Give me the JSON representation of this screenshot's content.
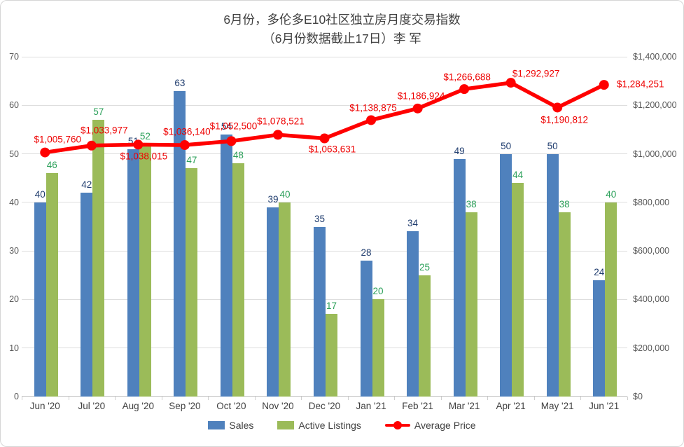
{
  "title": {
    "line1": "6月份，多伦多E10社区独立房月度交易指数",
    "line2": "（6月份数据截止17日）李 军"
  },
  "chart_data": {
    "type": "combo_bar_line",
    "categories": [
      "Jun '20",
      "Jul '20",
      "Aug '20",
      "Sep '20",
      "Oct '20",
      "Nov '20",
      "Dec '20",
      "Jan '21",
      "Feb '21",
      "Mar '21",
      "Apr '21",
      "May '21",
      "Jun '21"
    ],
    "series": [
      {
        "name": "Sales",
        "type": "bar",
        "color": "#4f81bd",
        "axis": "left",
        "values": [
          40,
          42,
          51,
          63,
          54,
          39,
          35,
          28,
          34,
          49,
          50,
          50,
          24
        ]
      },
      {
        "name": "Active Listings",
        "type": "bar",
        "color": "#9bbb59",
        "axis": "left",
        "values": [
          46,
          57,
          52,
          47,
          48,
          40,
          17,
          20,
          25,
          38,
          44,
          38,
          40
        ]
      },
      {
        "name": "Average Price",
        "type": "line",
        "color": "#ff0000",
        "axis": "right",
        "values": [
          1005760,
          1033977,
          1038015,
          1036140,
          1052500,
          1078521,
          1063631,
          1138875,
          1186924,
          1266688,
          1292927,
          1190812,
          1284251
        ],
        "labels": [
          "$1,005,760",
          "$1,033,977",
          "$1,038,015",
          "$1,036,140",
          "$1,052,500",
          "$1,078,521",
          "$1,063,631",
          "$1,138,875",
          "$1,186,924",
          "$1,266,688",
          "$1,292,927",
          "$1,190,812",
          "$1,284,251"
        ],
        "label_offsets": [
          [
            18,
            -19
          ],
          [
            18,
            -22
          ],
          [
            8,
            17
          ],
          [
            3,
            -19
          ],
          [
            3,
            -21
          ],
          [
            4,
            -19
          ],
          [
            11,
            15
          ],
          [
            3,
            -17
          ],
          [
            5,
            -18
          ],
          [
            4,
            -17
          ],
          [
            36,
            -13
          ],
          [
            10,
            18
          ],
          [
            52,
            -1
          ]
        ]
      }
    ],
    "left_axis": {
      "min": 0,
      "max": 70,
      "step": 10,
      "ticks": [
        "0",
        "10",
        "20",
        "30",
        "40",
        "50",
        "60",
        "70"
      ]
    },
    "right_axis": {
      "min": 0,
      "max": 1400000,
      "step": 200000,
      "ticks": [
        "$0",
        "$200,000",
        "$400,000",
        "$600,000",
        "$800,000",
        "$1,000,000",
        "$1,200,000",
        "$1,400,000"
      ]
    },
    "legend": {
      "position": "bottom",
      "entries": [
        "Sales",
        "Active Listings",
        "Average Price"
      ]
    },
    "grid": "horizontal"
  }
}
